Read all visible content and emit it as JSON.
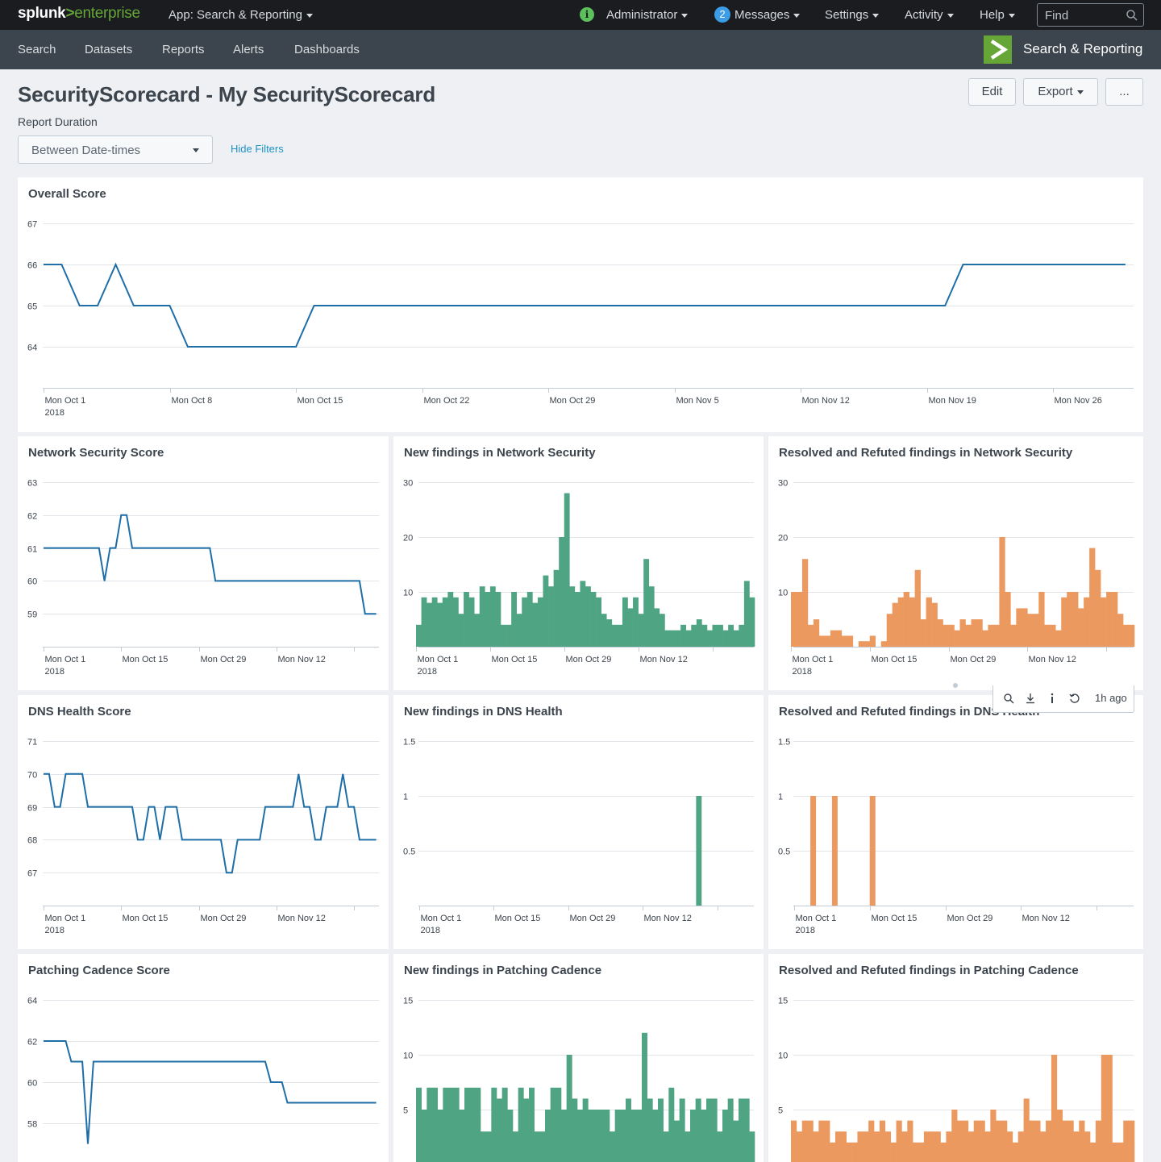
{
  "topbar": {
    "logo_splunk": "splunk",
    "logo_gt": ">",
    "logo_enterprise": "enterprise",
    "app_menu": "App: Search & Reporting",
    "user_menu": "Administrator",
    "messages_count": "2",
    "messages_menu": "Messages",
    "settings_menu": "Settings",
    "activity_menu": "Activity",
    "help_menu": "Help",
    "find_placeholder": "Find"
  },
  "appbar": {
    "nav": [
      "Search",
      "Datasets",
      "Reports",
      "Alerts",
      "Dashboards"
    ],
    "app_name": "Search & Reporting"
  },
  "page": {
    "title": "SecurityScorecard - My SecurityScorecard",
    "edit_label": "Edit",
    "export_label": "Export",
    "more_label": "...",
    "filter_label": "Report Duration",
    "filter_value": "Between Date-times",
    "hide_filters": "Hide Filters"
  },
  "panel_toolbar": {
    "time_ago": "1h ago"
  },
  "colors": {
    "line": "#1e6ea7",
    "new": "#4fa484",
    "resolved": "#ec9960",
    "brand_green": "#65a637"
  },
  "chart_data": [
    {
      "id": "overall",
      "type": "line",
      "title": "Overall Score",
      "ylim": [
        63,
        67
      ],
      "yticks": [
        64,
        65,
        66,
        67
      ],
      "xlim": [
        0,
        60.5
      ],
      "xticks": [
        {
          "x": 0,
          "label": "Mon Oct 1",
          "sub": "2018"
        },
        {
          "x": 7,
          "label": "Mon Oct 8"
        },
        {
          "x": 14,
          "label": "Mon Oct 15"
        },
        {
          "x": 21,
          "label": "Mon Oct 22"
        },
        {
          "x": 28,
          "label": "Mon Oct 29"
        },
        {
          "x": 35,
          "label": "Mon Nov 5"
        },
        {
          "x": 42,
          "label": "Mon Nov 12"
        },
        {
          "x": 49,
          "label": "Mon Nov 19"
        },
        {
          "x": 56,
          "label": "Mon Nov 26"
        }
      ],
      "series": [
        {
          "x": [
            0,
            1,
            2,
            3,
            4,
            5,
            6,
            7,
            8,
            9,
            10,
            11,
            12,
            13,
            14,
            15,
            16,
            17,
            18,
            19,
            20,
            21,
            22,
            23,
            24,
            25,
            26,
            27,
            28,
            29,
            30,
            31,
            32,
            33,
            34,
            35,
            36,
            37,
            38,
            39,
            40,
            41,
            42,
            43,
            44,
            45,
            46,
            47,
            48,
            49,
            50,
            51,
            52,
            53,
            54,
            55,
            56,
            57,
            58,
            59,
            60
          ],
          "values": [
            66,
            66,
            65,
            65,
            66,
            65,
            65,
            65,
            64,
            64,
            64,
            64,
            64,
            64,
            64,
            65,
            65,
            65,
            65,
            65,
            65,
            65,
            65,
            65,
            65,
            65,
            65,
            65,
            65,
            65,
            65,
            65,
            65,
            65,
            65,
            65,
            65,
            65,
            65,
            65,
            65,
            65,
            65,
            65,
            65,
            65,
            65,
            65,
            65,
            65,
            65,
            66,
            66,
            66,
            66,
            66,
            66,
            66,
            66,
            66,
            66
          ]
        }
      ]
    },
    {
      "id": "network_score",
      "type": "line",
      "title": "Network Security Score",
      "ylim": [
        58,
        63
      ],
      "yticks": [
        59,
        60,
        61,
        62,
        63
      ],
      "xlim": [
        0,
        60.5
      ],
      "xticks": [
        {
          "x": 0,
          "label": "Mon Oct 1",
          "sub": "2018"
        },
        {
          "x": 14,
          "label": "Mon Oct 15"
        },
        {
          "x": 28,
          "label": "Mon Oct 29"
        },
        {
          "x": 42,
          "label": "Mon Nov 12"
        },
        {
          "x": 56,
          "label": ""
        }
      ],
      "series": [
        {
          "x": [
            0,
            1,
            2,
            3,
            4,
            5,
            6,
            7,
            8,
            9,
            10,
            11,
            12,
            13,
            14,
            15,
            16,
            17,
            18,
            19,
            20,
            21,
            22,
            23,
            24,
            25,
            26,
            27,
            28,
            29,
            30,
            31,
            32,
            33,
            34,
            35,
            36,
            37,
            38,
            39,
            40,
            41,
            42,
            43,
            44,
            45,
            46,
            47,
            48,
            49,
            50,
            51,
            52,
            53,
            54,
            55,
            56,
            57,
            58,
            59,
            60
          ],
          "values": [
            61,
            61,
            61,
            61,
            61,
            61,
            61,
            61,
            61,
            61,
            61,
            60,
            61,
            61,
            62,
            62,
            61,
            61,
            61,
            61,
            61,
            61,
            61,
            61,
            61,
            61,
            61,
            61,
            61,
            61,
            61,
            60,
            60,
            60,
            60,
            60,
            60,
            60,
            60,
            60,
            60,
            60,
            60,
            60,
            60,
            60,
            60,
            60,
            60,
            60,
            60,
            60,
            60,
            60,
            60,
            60,
            60,
            60,
            59,
            59,
            59
          ]
        }
      ]
    },
    {
      "id": "network_new",
      "type": "bar",
      "title": "New findings in Network Security",
      "ylim": [
        0,
        30
      ],
      "yticks": [
        10,
        20,
        30
      ],
      "xticks": [
        {
          "x": 0,
          "label": "Mon Oct 1",
          "sub": "2018"
        },
        {
          "x": 14,
          "label": "Mon Oct 15"
        },
        {
          "x": 28,
          "label": "Mon Oct 29"
        },
        {
          "x": 42,
          "label": "Mon Nov 12"
        },
        {
          "x": 56,
          "label": ""
        }
      ],
      "values": [
        4,
        9,
        8,
        9,
        8,
        9,
        10,
        9,
        6,
        10,
        9,
        6,
        11,
        10,
        11,
        10,
        4,
        4,
        10,
        6,
        9,
        10,
        8,
        9,
        13,
        11,
        14,
        20,
        28,
        11,
        10,
        12,
        11,
        10,
        9,
        6,
        5,
        4,
        4,
        9,
        7,
        9,
        6,
        16,
        11,
        7,
        6,
        3,
        3,
        3,
        4,
        3,
        4,
        5,
        4,
        3,
        4,
        4,
        3,
        4,
        3,
        4,
        12,
        9
      ]
    },
    {
      "id": "network_resolved",
      "type": "bar",
      "title": "Resolved and Refuted findings in Network Security",
      "ylim": [
        0,
        30
      ],
      "yticks": [
        10,
        20,
        30
      ],
      "xticks": [
        {
          "x": 0,
          "label": "Mon Oct 1",
          "sub": "2018"
        },
        {
          "x": 14,
          "label": "Mon Oct 15"
        },
        {
          "x": 28,
          "label": "Mon Oct 29"
        },
        {
          "x": 42,
          "label": "Mon Nov 12"
        },
        {
          "x": 56,
          "label": ""
        }
      ],
      "values": [
        10,
        10,
        16,
        4,
        5,
        2,
        2,
        3,
        3,
        2,
        2,
        0,
        1,
        1,
        2,
        0,
        1,
        6,
        8,
        9,
        10,
        9,
        14,
        5,
        9,
        8,
        5,
        4,
        4,
        3,
        5,
        4,
        5,
        5,
        3,
        4,
        4,
        20,
        10,
        4,
        7,
        7,
        6,
        6,
        10,
        4,
        4,
        3,
        9,
        10,
        10,
        7,
        9,
        18,
        14,
        9,
        10,
        10,
        6,
        4,
        4
      ]
    },
    {
      "id": "dns_score",
      "type": "line",
      "title": "DNS Health Score",
      "ylim": [
        66,
        71
      ],
      "yticks": [
        67,
        68,
        69,
        70,
        71
      ],
      "xlim": [
        0,
        60.5
      ],
      "xticks": [
        {
          "x": 0,
          "label": "Mon Oct 1",
          "sub": "2018"
        },
        {
          "x": 14,
          "label": "Mon Oct 15"
        },
        {
          "x": 28,
          "label": "Mon Oct 29"
        },
        {
          "x": 42,
          "label": "Mon Nov 12"
        },
        {
          "x": 56,
          "label": ""
        }
      ],
      "series": [
        {
          "x": [
            0,
            1,
            2,
            3,
            4,
            5,
            6,
            7,
            8,
            9,
            10,
            11,
            12,
            13,
            14,
            15,
            16,
            17,
            18,
            19,
            20,
            21,
            22,
            23,
            24,
            25,
            26,
            27,
            28,
            29,
            30,
            31,
            32,
            33,
            34,
            35,
            36,
            37,
            38,
            39,
            40,
            41,
            42,
            43,
            44,
            45,
            46,
            47,
            48,
            49,
            50,
            51,
            52,
            53,
            54,
            55,
            56,
            57,
            58,
            59,
            60
          ],
          "values": [
            70,
            70,
            69,
            69,
            70,
            70,
            70,
            70,
            69,
            69,
            69,
            69,
            69,
            69,
            69,
            69,
            69,
            68,
            68,
            69,
            69,
            68,
            69,
            69,
            69,
            68,
            68,
            68,
            68,
            68,
            68,
            68,
            68,
            67,
            67,
            68,
            68,
            68,
            68,
            68,
            69,
            69,
            69,
            69,
            69,
            69,
            70,
            69,
            69,
            68,
            68,
            69,
            69,
            69,
            70,
            69,
            69,
            68,
            68,
            68,
            68
          ]
        }
      ]
    },
    {
      "id": "dns_new",
      "type": "bar",
      "title": "New findings in DNS Health",
      "ylim": [
        0,
        1.5
      ],
      "yticks": [
        0.5,
        1,
        1.5
      ],
      "xticks": [
        {
          "x": 0,
          "label": "Mon Oct 1",
          "sub": "2018"
        },
        {
          "x": 14,
          "label": "Mon Oct 15"
        },
        {
          "x": 28,
          "label": "Mon Oct 29"
        },
        {
          "x": 42,
          "label": "Mon Nov 12"
        },
        {
          "x": 56,
          "label": ""
        }
      ],
      "values": [
        0,
        0,
        0,
        0,
        0,
        0,
        0,
        0,
        0,
        0,
        0,
        0,
        0,
        0,
        0,
        0,
        0,
        0,
        0,
        0,
        0,
        0,
        0,
        0,
        0,
        0,
        0,
        0,
        0,
        0,
        0,
        0,
        0,
        0,
        0,
        0,
        0,
        0,
        0,
        0,
        0,
        0,
        0,
        0,
        0,
        0,
        0,
        0,
        0,
        0,
        0,
        0,
        1,
        0,
        0,
        0,
        0,
        0,
        0,
        0,
        0,
        0,
        0
      ]
    },
    {
      "id": "dns_resolved",
      "type": "bar",
      "title": "Resolved and Refuted findings in DNS Health",
      "ylim": [
        0,
        1.5
      ],
      "yticks": [
        0.5,
        1,
        1.5
      ],
      "xticks": [
        {
          "x": 0,
          "label": "Mon Oct 1",
          "sub": "2018"
        },
        {
          "x": 14,
          "label": "Mon Oct 15"
        },
        {
          "x": 28,
          "label": "Mon Oct 29"
        },
        {
          "x": 42,
          "label": "Mon Nov 12"
        },
        {
          "x": 56,
          "label": ""
        }
      ],
      "values": [
        0,
        0,
        0,
        1,
        0,
        0,
        0,
        1,
        0,
        0,
        0,
        0,
        0,
        0,
        1,
        0,
        0,
        0,
        0,
        0,
        0,
        0,
        0,
        0,
        0,
        0,
        0,
        0,
        0,
        0,
        0,
        0,
        0,
        0,
        0,
        0,
        0,
        0,
        0,
        0,
        0,
        0,
        0,
        0,
        0,
        0,
        0,
        0,
        0,
        0,
        0,
        0,
        0,
        0,
        0,
        0,
        0,
        0,
        0,
        0,
        0,
        0,
        0
      ]
    },
    {
      "id": "patching_score",
      "type": "line",
      "title": "Patching Cadence Score",
      "ylim": [
        56,
        64
      ],
      "yticks": [
        58,
        60,
        62,
        64
      ],
      "xlim": [
        0,
        60.5
      ],
      "xticks": [],
      "series": [
        {
          "x": [
            0,
            1,
            2,
            3,
            4,
            5,
            6,
            7,
            8,
            9,
            10,
            11,
            12,
            13,
            14,
            15,
            16,
            17,
            18,
            19,
            20,
            21,
            22,
            23,
            24,
            25,
            26,
            27,
            28,
            29,
            30,
            31,
            32,
            33,
            34,
            35,
            36,
            37,
            38,
            39,
            40,
            41,
            42,
            43,
            44,
            45,
            46,
            47,
            48,
            49,
            50,
            51,
            52,
            53,
            54,
            55,
            56,
            57,
            58,
            59,
            60
          ],
          "values": [
            62,
            62,
            62,
            62,
            62,
            61,
            61,
            61,
            57,
            61,
            61,
            61,
            61,
            61,
            61,
            61,
            61,
            61,
            61,
            61,
            61,
            61,
            61,
            61,
            61,
            61,
            61,
            61,
            61,
            61,
            61,
            61,
            61,
            61,
            61,
            61,
            61,
            61,
            61,
            61,
            61,
            60,
            60,
            60,
            59,
            59,
            59,
            59,
            59,
            59,
            59,
            59,
            59,
            59,
            59,
            59,
            59,
            59,
            59,
            59,
            59
          ]
        }
      ]
    },
    {
      "id": "patching_new",
      "type": "bar",
      "title": "New findings in Patching Cadence",
      "ylim": [
        0,
        15
      ],
      "yticks": [
        5,
        10,
        15
      ],
      "xticks": [],
      "values": [
        7,
        5,
        7,
        7,
        5,
        7,
        7,
        7,
        5,
        7,
        7,
        7,
        3,
        3,
        7,
        6,
        7,
        5,
        3,
        7,
        6,
        7,
        3,
        3,
        5,
        7,
        7,
        5,
        10,
        6,
        5,
        6,
        5,
        5,
        5,
        5,
        3,
        5,
        5,
        6,
        5,
        5,
        12,
        6,
        5,
        6,
        3,
        7,
        4,
        6,
        3,
        5,
        6,
        5,
        6,
        6,
        3,
        5,
        6,
        4,
        6,
        6,
        3
      ]
    },
    {
      "id": "patching_resolved",
      "type": "bar",
      "title": "Resolved and Refuted findings in Patching Cadence",
      "ylim": [
        0,
        15
      ],
      "yticks": [
        5,
        10,
        15
      ],
      "xticks": [],
      "values": [
        4,
        3,
        4,
        4,
        3,
        4,
        4,
        2,
        3,
        3,
        2,
        2,
        3,
        3,
        4,
        3,
        4,
        3,
        2,
        4,
        3,
        4,
        2,
        2,
        3,
        3,
        3,
        2,
        3,
        5,
        4,
        4,
        3,
        4,
        4,
        3,
        5,
        4,
        4,
        3,
        2,
        3,
        6,
        4,
        4,
        3,
        4,
        10,
        5,
        4,
        4,
        3,
        4,
        3,
        2,
        4,
        10,
        10,
        2,
        2,
        4,
        4
      ]
    }
  ]
}
